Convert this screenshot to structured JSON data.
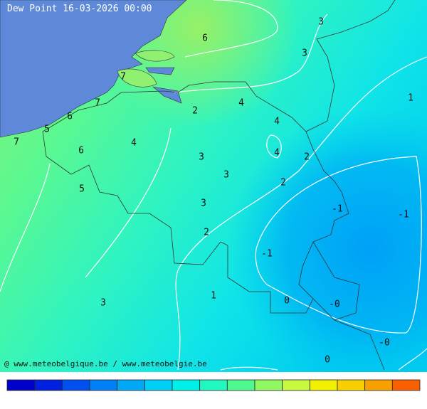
{
  "title": "Dew Point 16-03-2026 00:00",
  "credit": "@ www.meteobelgique.be / www.meteobelgie.be",
  "labels": [
    "3",
    "6",
    "3",
    "1",
    "7",
    "7",
    "6",
    "5",
    "7",
    "6",
    "4",
    "2",
    "4",
    "4",
    "4",
    "2",
    "3",
    "3",
    "2",
    "5",
    "3",
    "-1",
    "-1",
    "2",
    "-1",
    "1",
    "0",
    "-0",
    "3",
    "-0",
    "0"
  ]
}
